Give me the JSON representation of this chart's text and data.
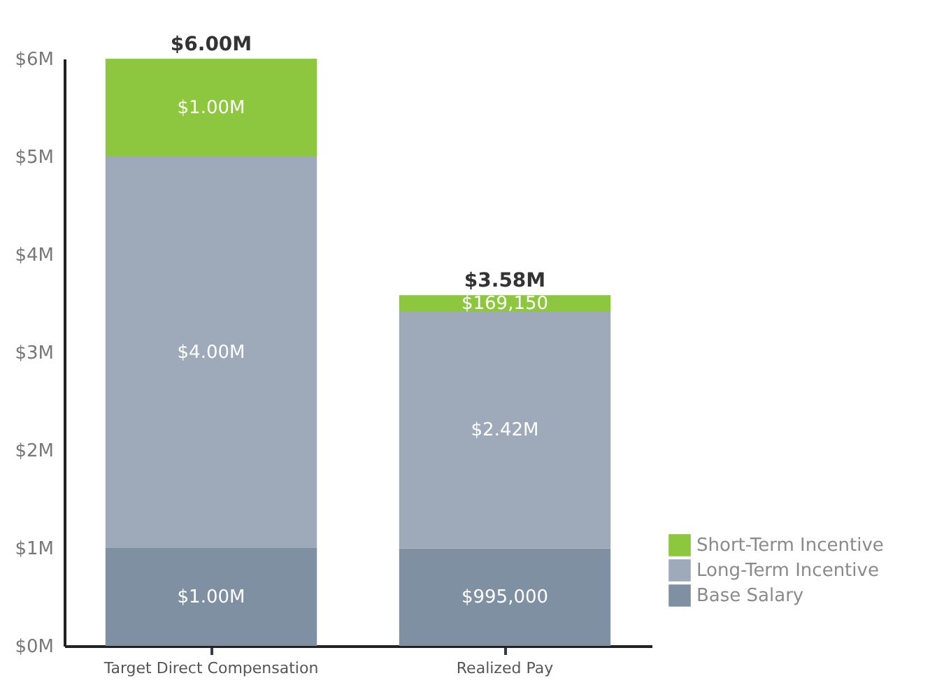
{
  "chart_data": {
    "type": "bar",
    "stacked": true,
    "categories": [
      "Target Direct Compensation",
      "Realized Pay"
    ],
    "series": [
      {
        "name": "Base Salary",
        "color": "#8090a3",
        "values": [
          1000000,
          995000
        ],
        "value_labels": [
          "$1.00M",
          "$995,000"
        ]
      },
      {
        "name": "Long-Term Incentive",
        "color": "#9eaaba",
        "values": [
          4000000,
          2420000
        ],
        "value_labels": [
          "$4.00M",
          "$2.42M"
        ]
      },
      {
        "name": "Short-Term Incentive",
        "color": "#8dc63f",
        "values": [
          1000000,
          169150
        ],
        "value_labels": [
          "$1.00M",
          "$169,150"
        ]
      }
    ],
    "totals": [
      "$6.00M",
      "$3.58M"
    ],
    "ylim": [
      0,
      6000000
    ],
    "yticks": [
      {
        "value": 0,
        "label": "$0M"
      },
      {
        "value": 1000000,
        "label": "$1M"
      },
      {
        "value": 2000000,
        "label": "$2M"
      },
      {
        "value": 3000000,
        "label": "$3M"
      },
      {
        "value": 4000000,
        "label": "$4M"
      },
      {
        "value": 5000000,
        "label": "$5M"
      },
      {
        "value": 6000000,
        "label": "$6M"
      }
    ],
    "grid": false,
    "legend": "bottom right"
  }
}
